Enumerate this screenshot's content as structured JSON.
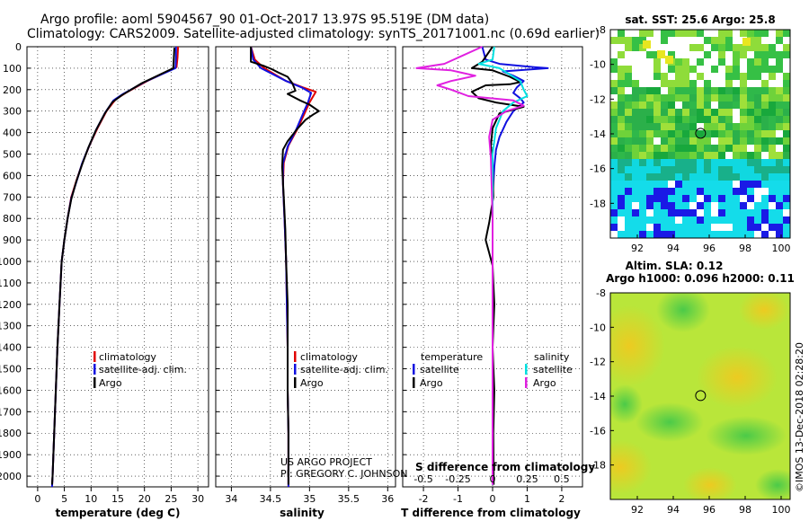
{
  "header": {
    "title_line1": "Argo profile: aoml 5904567_90 01-Oct-2017 13.97S 95.519E (DM data)",
    "title_line2": "Climatology: CARS2009. Satellite-adjusted climatology: synTS_20171001.nc (0.69d earlier)"
  },
  "depth_ticks": [
    0,
    100,
    200,
    300,
    400,
    500,
    600,
    700,
    800,
    900,
    1000,
    1100,
    1200,
    1300,
    1400,
    1500,
    1600,
    1700,
    1800,
    1900,
    2000
  ],
  "colors": {
    "climatology": "#e00000",
    "satellite": "#1010e0",
    "argo": "#000000",
    "salinity_sat": "#00e0e0",
    "salinity_argo": "#e020e0"
  },
  "chart_data": [
    {
      "id": "temperature",
      "type": "line",
      "xlabel": "temperature (deg C)",
      "xlim": [
        -2,
        32
      ],
      "xticks": [
        0,
        5,
        10,
        15,
        20,
        25,
        30
      ],
      "ylim": [
        2050,
        0
      ],
      "legend": [
        "climatology",
        "satellite-adj. clim.",
        "Argo"
      ],
      "series": [
        {
          "name": "climatology",
          "color_key": "climatology",
          "points": [
            [
              26.3,
              0
            ],
            [
              26.2,
              50
            ],
            [
              26.0,
              95
            ],
            [
              20.5,
              160
            ],
            [
              16.5,
              215
            ],
            [
              14.6,
              245
            ],
            [
              12.9,
              300
            ],
            [
              11.2,
              380
            ],
            [
              9.7,
              460
            ],
            [
              8.4,
              540
            ],
            [
              7.3,
              620
            ],
            [
              6.3,
              700
            ],
            [
              5.6,
              800
            ],
            [
              5.0,
              900
            ],
            [
              4.5,
              1000
            ],
            [
              4.1,
              1200
            ],
            [
              3.7,
              1400
            ],
            [
              3.4,
              1600
            ],
            [
              3.1,
              1800
            ],
            [
              2.8,
              2000
            ],
            [
              2.7,
              2050
            ]
          ]
        },
        {
          "name": "satellite-adj. clim.",
          "color_key": "satellite",
          "points": [
            [
              25.9,
              0
            ],
            [
              25.9,
              50
            ],
            [
              25.8,
              100
            ],
            [
              20.0,
              165
            ],
            [
              16.0,
              220
            ],
            [
              14.2,
              250
            ],
            [
              12.7,
              305
            ],
            [
              11.0,
              385
            ],
            [
              9.6,
              465
            ],
            [
              8.3,
              545
            ],
            [
              7.3,
              625
            ],
            [
              6.3,
              705
            ],
            [
              5.6,
              800
            ],
            [
              5.0,
              900
            ],
            [
              4.5,
              1000
            ],
            [
              4.1,
              1200
            ],
            [
              3.7,
              1400
            ],
            [
              3.4,
              1600
            ],
            [
              3.1,
              1800
            ],
            [
              2.8,
              2000
            ],
            [
              2.7,
              2050
            ]
          ]
        },
        {
          "name": "Argo",
          "color_key": "argo",
          "points": [
            [
              25.6,
              5
            ],
            [
              25.5,
              50
            ],
            [
              25.4,
              100
            ],
            [
              19.5,
              170
            ],
            [
              15.8,
              225
            ],
            [
              14.0,
              258
            ],
            [
              12.6,
              310
            ],
            [
              10.9,
              390
            ],
            [
              9.5,
              470
            ],
            [
              8.3,
              550
            ],
            [
              7.2,
              630
            ],
            [
              6.3,
              710
            ],
            [
              5.6,
              800
            ],
            [
              5.0,
              900
            ],
            [
              4.5,
              1000
            ],
            [
              4.1,
              1200
            ],
            [
              3.7,
              1400
            ],
            [
              3.4,
              1600
            ],
            [
              3.1,
              1800
            ],
            [
              2.8,
              2000
            ],
            [
              2.7,
              2040
            ]
          ]
        }
      ]
    },
    {
      "id": "salinity",
      "type": "line",
      "xlabel": "salinity",
      "xlim": [
        33.8,
        36.1
      ],
      "xticks": [
        34,
        34.5,
        35,
        35.5,
        36
      ],
      "ylim": [
        2050,
        0
      ],
      "legend": [
        "climatology",
        "satellite-adj. clim.",
        "Argo"
      ],
      "annotations": [
        "US ARGO PROJECT",
        "PI: GREGORY C. JOHNSON"
      ],
      "series": [
        {
          "name": "climatology",
          "color_key": "climatology",
          "points": [
            [
              34.25,
              0
            ],
            [
              34.3,
              60
            ],
            [
              34.42,
              100
            ],
            [
              34.7,
              160
            ],
            [
              34.92,
              190
            ],
            [
              35.08,
              210
            ],
            [
              35.0,
              260
            ],
            [
              34.95,
              300
            ],
            [
              34.85,
              380
            ],
            [
              34.73,
              460
            ],
            [
              34.67,
              540
            ],
            [
              34.66,
              640
            ],
            [
              34.68,
              800
            ],
            [
              34.7,
              1000
            ],
            [
              34.71,
              1200
            ],
            [
              34.72,
              1400
            ],
            [
              34.72,
              1600
            ],
            [
              34.73,
              1800
            ],
            [
              34.73,
              2000
            ],
            [
              34.73,
              2050
            ]
          ]
        },
        {
          "name": "satellite-adj. clim.",
          "color_key": "satellite",
          "points": [
            [
              34.25,
              0
            ],
            [
              34.28,
              60
            ],
            [
              34.38,
              100
            ],
            [
              34.7,
              160
            ],
            [
              34.9,
              190
            ],
            [
              35.02,
              215
            ],
            [
              34.98,
              260
            ],
            [
              34.93,
              300
            ],
            [
              34.83,
              385
            ],
            [
              34.72,
              465
            ],
            [
              34.66,
              545
            ],
            [
              34.66,
              640
            ],
            [
              34.68,
              800
            ],
            [
              34.7,
              1000
            ],
            [
              34.71,
              1200
            ],
            [
              34.72,
              1400
            ],
            [
              34.72,
              1600
            ],
            [
              34.73,
              1800
            ],
            [
              34.73,
              2000
            ],
            [
              34.73,
              2050
            ]
          ]
        },
        {
          "name": "Argo",
          "color_key": "argo",
          "points": [
            [
              34.25,
              0
            ],
            [
              34.25,
              70
            ],
            [
              34.42,
              90
            ],
            [
              34.52,
              105
            ],
            [
              34.6,
              120
            ],
            [
              34.72,
              140
            ],
            [
              34.78,
              170
            ],
            [
              34.82,
              205
            ],
            [
              34.72,
              220
            ],
            [
              34.88,
              250
            ],
            [
              35.0,
              270
            ],
            [
              35.12,
              300
            ],
            [
              35.05,
              315
            ],
            [
              34.95,
              340
            ],
            [
              34.85,
              380
            ],
            [
              34.72,
              440
            ],
            [
              34.66,
              480
            ],
            [
              34.65,
              560
            ],
            [
              34.67,
              700
            ],
            [
              34.69,
              850
            ],
            [
              34.7,
              1000
            ],
            [
              34.72,
              1200
            ],
            [
              34.72,
              1400
            ],
            [
              34.72,
              1600
            ],
            [
              34.73,
              1800
            ],
            [
              34.73,
              2000
            ],
            [
              34.73,
              2040
            ]
          ]
        }
      ]
    },
    {
      "id": "differences",
      "type": "line",
      "xlabel": "T difference from climatology",
      "xlabel_top": "S difference from climatology",
      "xlim": [
        -2.6,
        2.6
      ],
      "xticks": [
        -2,
        -1,
        0,
        1,
        2
      ],
      "xtick_labels_top": [
        "-0.5",
        "-0.25",
        "0",
        "0.25",
        "0.5"
      ],
      "ylim": [
        2050,
        0
      ],
      "legend_left_title": "temperature",
      "legend_right_title": "salinity",
      "legend_left": [
        "satellite",
        "Argo"
      ],
      "legend_right": [
        "satellite",
        "Argo"
      ],
      "series": [
        {
          "name": "T satellite",
          "color_key": "satellite",
          "points": [
            [
              -0.3,
              0
            ],
            [
              -0.2,
              60
            ],
            [
              0.2,
              80
            ],
            [
              1.2,
              95
            ],
            [
              1.6,
              100
            ],
            [
              0.3,
              115
            ],
            [
              0.6,
              135
            ],
            [
              0.9,
              160
            ],
            [
              0.7,
              190
            ],
            [
              0.6,
              215
            ],
            [
              0.8,
              240
            ],
            [
              0.9,
              260
            ],
            [
              0.6,
              300
            ],
            [
              0.4,
              350
            ],
            [
              0.2,
              420
            ],
            [
              0.1,
              480
            ],
            [
              0.05,
              560
            ],
            [
              0.0,
              700
            ],
            [
              0.0,
              2040
            ]
          ]
        },
        {
          "name": "T Argo",
          "color_key": "argo",
          "points": [
            [
              0.0,
              0
            ],
            [
              -0.3,
              70
            ],
            [
              -0.6,
              100
            ],
            [
              0.0,
              110
            ],
            [
              0.5,
              140
            ],
            [
              0.8,
              165
            ],
            [
              0.5,
              175
            ],
            [
              -0.2,
              180
            ],
            [
              -0.6,
              210
            ],
            [
              -0.4,
              240
            ],
            [
              0.1,
              260
            ],
            [
              0.9,
              280
            ],
            [
              0.2,
              310
            ],
            [
              0.0,
              380
            ],
            [
              -0.05,
              460
            ],
            [
              0.0,
              540
            ],
            [
              0.02,
              700
            ],
            [
              -0.1,
              820
            ],
            [
              -0.15,
              860
            ],
            [
              -0.2,
              900
            ],
            [
              -0.1,
              960
            ],
            [
              0.0,
              1020
            ],
            [
              0.05,
              1200
            ],
            [
              0.0,
              1400
            ],
            [
              0.05,
              1600
            ],
            [
              0.02,
              1800
            ],
            [
              0.03,
              2040
            ]
          ]
        },
        {
          "name": "S satellite",
          "color_key": "salinity_sat",
          "points": [
            [
              0.05,
              0
            ],
            [
              0.0,
              60
            ],
            [
              -0.4,
              80
            ],
            [
              0.2,
              100
            ],
            [
              0.5,
              130
            ],
            [
              0.8,
              160
            ],
            [
              0.9,
              200
            ],
            [
              1.0,
              230
            ],
            [
              0.6,
              260
            ],
            [
              0.3,
              300
            ],
            [
              0.1,
              380
            ],
            [
              0.0,
              500
            ],
            [
              0.0,
              2040
            ]
          ]
        },
        {
          "name": "S Argo",
          "color_key": "salinity_argo",
          "points": [
            [
              -0.3,
              0
            ],
            [
              -1.4,
              80
            ],
            [
              -2.2,
              100
            ],
            [
              -1.2,
              110
            ],
            [
              -0.5,
              135
            ],
            [
              -1.2,
              160
            ],
            [
              -1.6,
              180
            ],
            [
              -1.2,
              200
            ],
            [
              -0.7,
              230
            ],
            [
              0.6,
              250
            ],
            [
              0.9,
              275
            ],
            [
              0.4,
              300
            ],
            [
              0.0,
              340
            ],
            [
              -0.1,
              420
            ],
            [
              -0.05,
              520
            ],
            [
              0.0,
              800
            ],
            [
              0.0,
              2040
            ]
          ]
        }
      ]
    }
  ],
  "maps": {
    "top": {
      "title": "sat. SST: 25.6 Argo: 25.8",
      "lon_ticks": [
        92,
        94,
        96,
        98,
        100
      ],
      "lat_ticks": [
        -8,
        -10,
        -12,
        -14,
        -16,
        -18
      ],
      "lon_range": [
        90.5,
        100.5
      ],
      "lat_range": [
        -20,
        -8
      ],
      "marker": {
        "lon": 95.519,
        "lat": -13.97
      }
    },
    "bottom": {
      "title_line1": "Altim. SLA: 0.12",
      "title_line2": "Argo h1000: 0.096 h2000: 0.11",
      "lon_ticks": [
        92,
        94,
        96,
        98,
        100
      ],
      "lat_ticks": [
        -8,
        -10,
        -12,
        -14,
        -16,
        -18
      ],
      "lon_range": [
        90.5,
        100.5
      ],
      "lat_range": [
        -20,
        -8
      ],
      "marker": {
        "lon": 95.519,
        "lat": -13.97
      }
    }
  },
  "footer": {
    "credit": "©IMOS 13-Dec-2018 02:28:20"
  }
}
